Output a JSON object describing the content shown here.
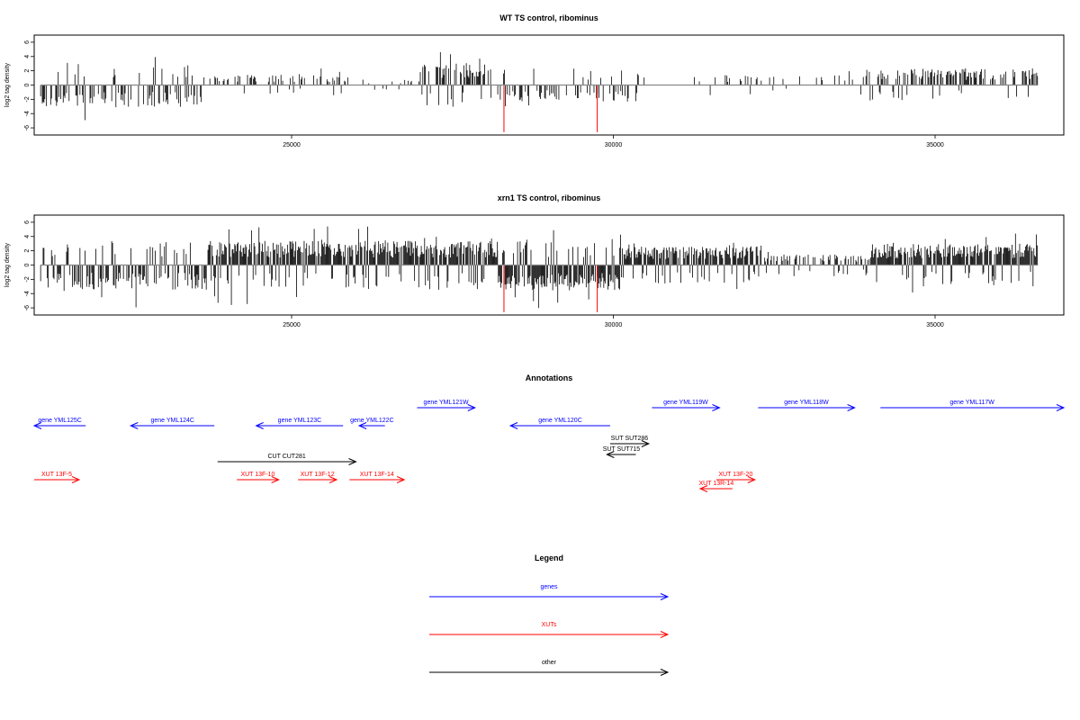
{
  "panels": {
    "wt": {
      "title": "WT TS control, ribominus"
    },
    "xrn1": {
      "title": "xrn1 TS control, ribominus"
    },
    "annotations": {
      "title": "Annotations"
    },
    "legend": {
      "title": "Legend"
    }
  },
  "colors": {
    "genes": "#0000ff",
    "xuts": "#ff0000",
    "other": "#000000",
    "signal": "#000000",
    "highlight": "#ff0000",
    "baseline": "#888888"
  },
  "chart_data": [
    {
      "type": "bar",
      "title": "WT TS control, ribominus",
      "ylabel": "log2 tag density",
      "xlim": [
        21000,
        37000
      ],
      "ylim": [
        -7,
        7
      ],
      "xticks": [
        25000,
        30000,
        35000
      ],
      "yticks": [
        -6,
        -4,
        -2,
        0,
        2,
        4,
        6
      ],
      "signal_range": [
        21100,
        36600
      ],
      "regions": [
        {
          "start": 21100,
          "end": 23600,
          "mean": -2.4,
          "density": 0.55
        },
        {
          "start": 23600,
          "end": 25900,
          "mean": 1.1,
          "density": 0.35
        },
        {
          "start": 25900,
          "end": 27000,
          "mean": 0.6,
          "density": 0.12
        },
        {
          "start": 27000,
          "end": 28100,
          "mean": 2.4,
          "density": 0.6
        },
        {
          "start": 28100,
          "end": 30400,
          "mean": -1.8,
          "density": 0.3
        },
        {
          "start": 30400,
          "end": 33900,
          "mean": 1.1,
          "density": 0.15
        },
        {
          "start": 33900,
          "end": 36600,
          "mean": 1.8,
          "density": 0.55
        }
      ],
      "highlights": [
        {
          "x": 28300,
          "y": -6.6
        },
        {
          "x": 29750,
          "y": -6.6
        }
      ]
    },
    {
      "type": "bar",
      "title": "xrn1 TS control, ribominus",
      "ylabel": "log2 tag density",
      "xlim": [
        21000,
        37000
      ],
      "ylim": [
        -7,
        7
      ],
      "xticks": [
        25000,
        30000,
        35000
      ],
      "yticks": [
        -6,
        -4,
        -2,
        0,
        2,
        4,
        6
      ],
      "signal_range": [
        21100,
        36600
      ],
      "regions": [
        {
          "start": 21100,
          "end": 23700,
          "mean": -2.7,
          "density": 0.55
        },
        {
          "start": 23700,
          "end": 28200,
          "mean": 2.6,
          "density": 0.95
        },
        {
          "start": 28200,
          "end": 30100,
          "mean": -2.8,
          "density": 0.95
        },
        {
          "start": 30100,
          "end": 32300,
          "mean": 2.0,
          "density": 0.9
        },
        {
          "start": 32300,
          "end": 34000,
          "mean": 1.2,
          "density": 0.45
        },
        {
          "start": 34000,
          "end": 36600,
          "mean": 2.3,
          "density": 0.95
        }
      ],
      "highlights": [
        {
          "x": 28300,
          "y": -6.6
        },
        {
          "x": 29750,
          "y": -6.6
        }
      ]
    }
  ],
  "annotations": [
    {
      "label": "gene YML125C",
      "start": 20950,
      "end": 21800,
      "strand": "-",
      "kind": "gene",
      "row": 1
    },
    {
      "label": "gene YML124C",
      "start": 22500,
      "end": 23800,
      "strand": "-",
      "kind": "gene",
      "row": 1
    },
    {
      "label": "gene YML123C",
      "start": 24450,
      "end": 25800,
      "strand": "-",
      "kind": "gene",
      "row": 1
    },
    {
      "label": "gene YML122C",
      "start": 26050,
      "end": 26450,
      "strand": "-",
      "kind": "gene",
      "row": 1
    },
    {
      "label": "gene YML121W",
      "start": 26950,
      "end": 27850,
      "strand": "+",
      "kind": "gene",
      "row": 0
    },
    {
      "label": "gene YML120C",
      "start": 28400,
      "end": 29950,
      "strand": "-",
      "kind": "gene",
      "row": 1
    },
    {
      "label": "gene YML119W",
      "start": 30600,
      "end": 31650,
      "strand": "+",
      "kind": "gene",
      "row": 0
    },
    {
      "label": "gene YML118W",
      "start": 32250,
      "end": 33750,
      "strand": "+",
      "kind": "gene",
      "row": 0
    },
    {
      "label": "gene YML117W",
      "start": 34150,
      "end": 37000,
      "strand": "+",
      "kind": "gene",
      "row": 0
    },
    {
      "label": "CUT CUT281",
      "start": 23850,
      "end": 26000,
      "strand": "+",
      "kind": "other",
      "row": 3
    },
    {
      "label": "SUT SUT286",
      "start": 29950,
      "end": 30550,
      "strand": "+",
      "kind": "other",
      "row": 2
    },
    {
      "label": "SUT SUT715",
      "start": 29900,
      "end": 30350,
      "strand": "-",
      "kind": "other",
      "row": 2.6
    },
    {
      "label": "XUT 13F-5",
      "start": 20950,
      "end": 21700,
      "strand": "+",
      "kind": "xut",
      "row": 4
    },
    {
      "label": "XUT 13F-10",
      "start": 24150,
      "end": 24800,
      "strand": "+",
      "kind": "xut",
      "row": 4
    },
    {
      "label": "XUT 13F-12",
      "start": 25100,
      "end": 25700,
      "strand": "+",
      "kind": "xut",
      "row": 4
    },
    {
      "label": "XUT 13F-14",
      "start": 25900,
      "end": 26750,
      "strand": "+",
      "kind": "xut",
      "row": 4
    },
    {
      "label": "XUT 13F-20",
      "start": 31600,
      "end": 32200,
      "strand": "+",
      "kind": "xut",
      "row": 4
    },
    {
      "label": "XUT 13R-14",
      "start": 31350,
      "end": 31850,
      "strand": "-",
      "kind": "xut",
      "row": 4.5
    }
  ],
  "legend": [
    {
      "label": "genes",
      "kind": "gene"
    },
    {
      "label": "XUTs",
      "kind": "xut"
    },
    {
      "label": "other",
      "kind": "other"
    }
  ]
}
